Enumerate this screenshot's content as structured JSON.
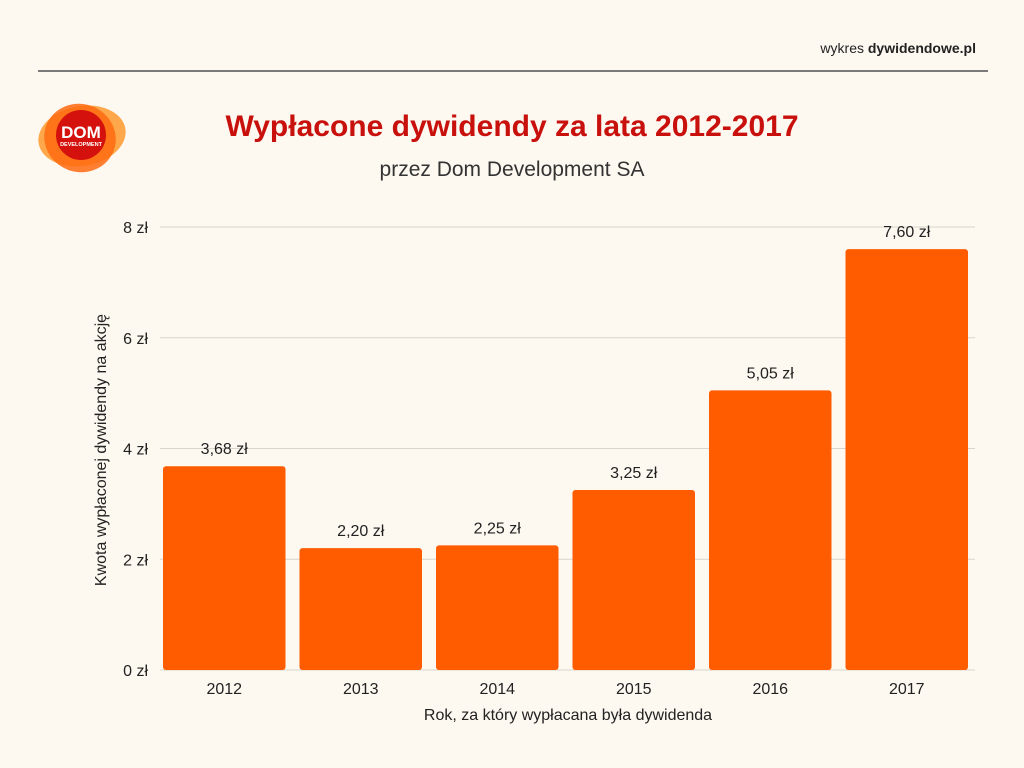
{
  "header": {
    "brand_prefix": "wykres",
    "brand_name": "dywidendowe.pl"
  },
  "logo": {
    "line1": "DOM",
    "line2": "DEVELOPMENT"
  },
  "colors": {
    "bar": "#ff5c00",
    "title": "#c8100c",
    "background": "#fdf8f0"
  },
  "chart_data": {
    "type": "bar",
    "title": "Wypłacone dywidendy za lata 2012-2017",
    "subtitle": "przez Dom Development SA",
    "xlabel": "Rok, za który wypłacana była dywidenda",
    "ylabel": "Kwota wypłaconej dywidendy na akcję",
    "categories": [
      "2012",
      "2013",
      "2014",
      "2015",
      "2016",
      "2017"
    ],
    "values": [
      3.68,
      2.2,
      2.25,
      3.25,
      5.05,
      7.6
    ],
    "data_labels": [
      "3,68 zł",
      "2,20 zł",
      "2,25 zł",
      "3,25 zł",
      "5,05 zł",
      "7,60 zł"
    ],
    "yticks": [
      0,
      2,
      4,
      6,
      8
    ],
    "ytick_labels": [
      "0 zł",
      "2 zł",
      "4 zł",
      "6 zł",
      "8 zł"
    ],
    "ylim": [
      0,
      8
    ],
    "grid": true,
    "legend": "none"
  }
}
